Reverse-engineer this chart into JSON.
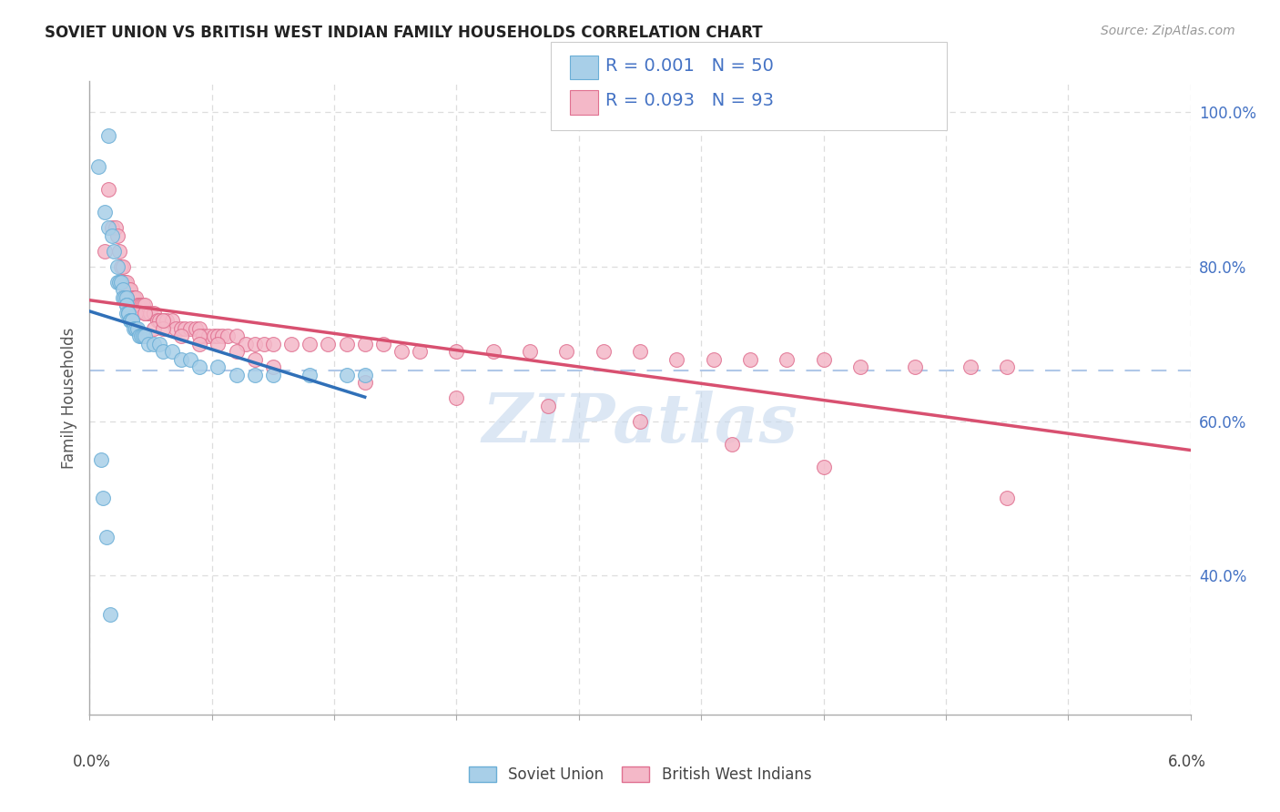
{
  "title": "SOVIET UNION VS BRITISH WEST INDIAN FAMILY HOUSEHOLDS CORRELATION CHART",
  "source": "Source: ZipAtlas.com",
  "ylabel": "Family Households",
  "right_yticks": [
    40.0,
    60.0,
    80.0,
    100.0
  ],
  "xmin": 0.0,
  "xmax": 6.0,
  "ymin": 22.0,
  "ymax": 104.0,
  "watermark": "ZIPatlas",
  "soviet_color": "#a8cfe8",
  "soviet_edge": "#6aaed6",
  "bwi_color": "#f4b8c8",
  "bwi_edge": "#e07090",
  "soviet_line_color": "#3070b8",
  "bwi_line_color": "#d85070",
  "dashed_line_color": "#b0c8e8",
  "dashed_line_y": 66.5,
  "soviet_x": [
    0.05,
    0.08,
    0.1,
    0.1,
    0.12,
    0.13,
    0.15,
    0.15,
    0.16,
    0.17,
    0.18,
    0.18,
    0.19,
    0.2,
    0.2,
    0.2,
    0.2,
    0.21,
    0.21,
    0.22,
    0.22,
    0.23,
    0.23,
    0.24,
    0.25,
    0.25,
    0.26,
    0.27,
    0.28,
    0.29,
    0.3,
    0.32,
    0.35,
    0.38,
    0.4,
    0.45,
    0.5,
    0.55,
    0.6,
    0.7,
    0.8,
    0.9,
    1.0,
    1.2,
    1.4,
    1.5,
    0.06,
    0.07,
    0.09,
    0.11
  ],
  "soviet_y": [
    93,
    87,
    97,
    85,
    84,
    82,
    80,
    78,
    78,
    78,
    77,
    76,
    76,
    76,
    75,
    75,
    74,
    74,
    74,
    73,
    73,
    73,
    73,
    72,
    72,
    72,
    72,
    71,
    71,
    71,
    71,
    70,
    70,
    70,
    69,
    69,
    68,
    68,
    67,
    67,
    66,
    66,
    66,
    66,
    66,
    66,
    55,
    50,
    45,
    35
  ],
  "bwi_x": [
    0.08,
    0.1,
    0.12,
    0.14,
    0.15,
    0.16,
    0.17,
    0.18,
    0.18,
    0.19,
    0.2,
    0.2,
    0.21,
    0.22,
    0.23,
    0.23,
    0.24,
    0.25,
    0.26,
    0.27,
    0.28,
    0.29,
    0.3,
    0.3,
    0.31,
    0.32,
    0.33,
    0.35,
    0.37,
    0.38,
    0.4,
    0.42,
    0.45,
    0.47,
    0.5,
    0.52,
    0.55,
    0.58,
    0.6,
    0.62,
    0.65,
    0.68,
    0.7,
    0.72,
    0.75,
    0.8,
    0.85,
    0.9,
    0.95,
    1.0,
    1.1,
    1.2,
    1.3,
    1.4,
    1.5,
    1.6,
    1.7,
    1.8,
    2.0,
    2.2,
    2.4,
    2.6,
    2.8,
    3.0,
    3.2,
    3.4,
    3.6,
    3.8,
    4.0,
    4.2,
    4.5,
    4.8,
    5.0,
    0.25,
    0.3,
    0.35,
    0.4,
    0.5,
    0.6,
    0.7,
    0.8,
    0.9,
    1.0,
    1.5,
    2.0,
    2.5,
    3.0,
    3.5,
    4.0,
    5.0,
    0.2,
    0.4,
    0.6
  ],
  "bwi_y": [
    82,
    90,
    85,
    85,
    84,
    82,
    80,
    80,
    78,
    78,
    78,
    77,
    77,
    77,
    76,
    76,
    76,
    76,
    75,
    75,
    75,
    75,
    75,
    74,
    74,
    74,
    74,
    74,
    73,
    73,
    73,
    73,
    73,
    72,
    72,
    72,
    72,
    72,
    72,
    71,
    71,
    71,
    71,
    71,
    71,
    71,
    70,
    70,
    70,
    70,
    70,
    70,
    70,
    70,
    70,
    70,
    69,
    69,
    69,
    69,
    69,
    69,
    69,
    69,
    68,
    68,
    68,
    68,
    68,
    67,
    67,
    67,
    67,
    74,
    74,
    72,
    72,
    71,
    71,
    70,
    69,
    68,
    67,
    65,
    63,
    62,
    60,
    57,
    54,
    50,
    76,
    73,
    70
  ]
}
